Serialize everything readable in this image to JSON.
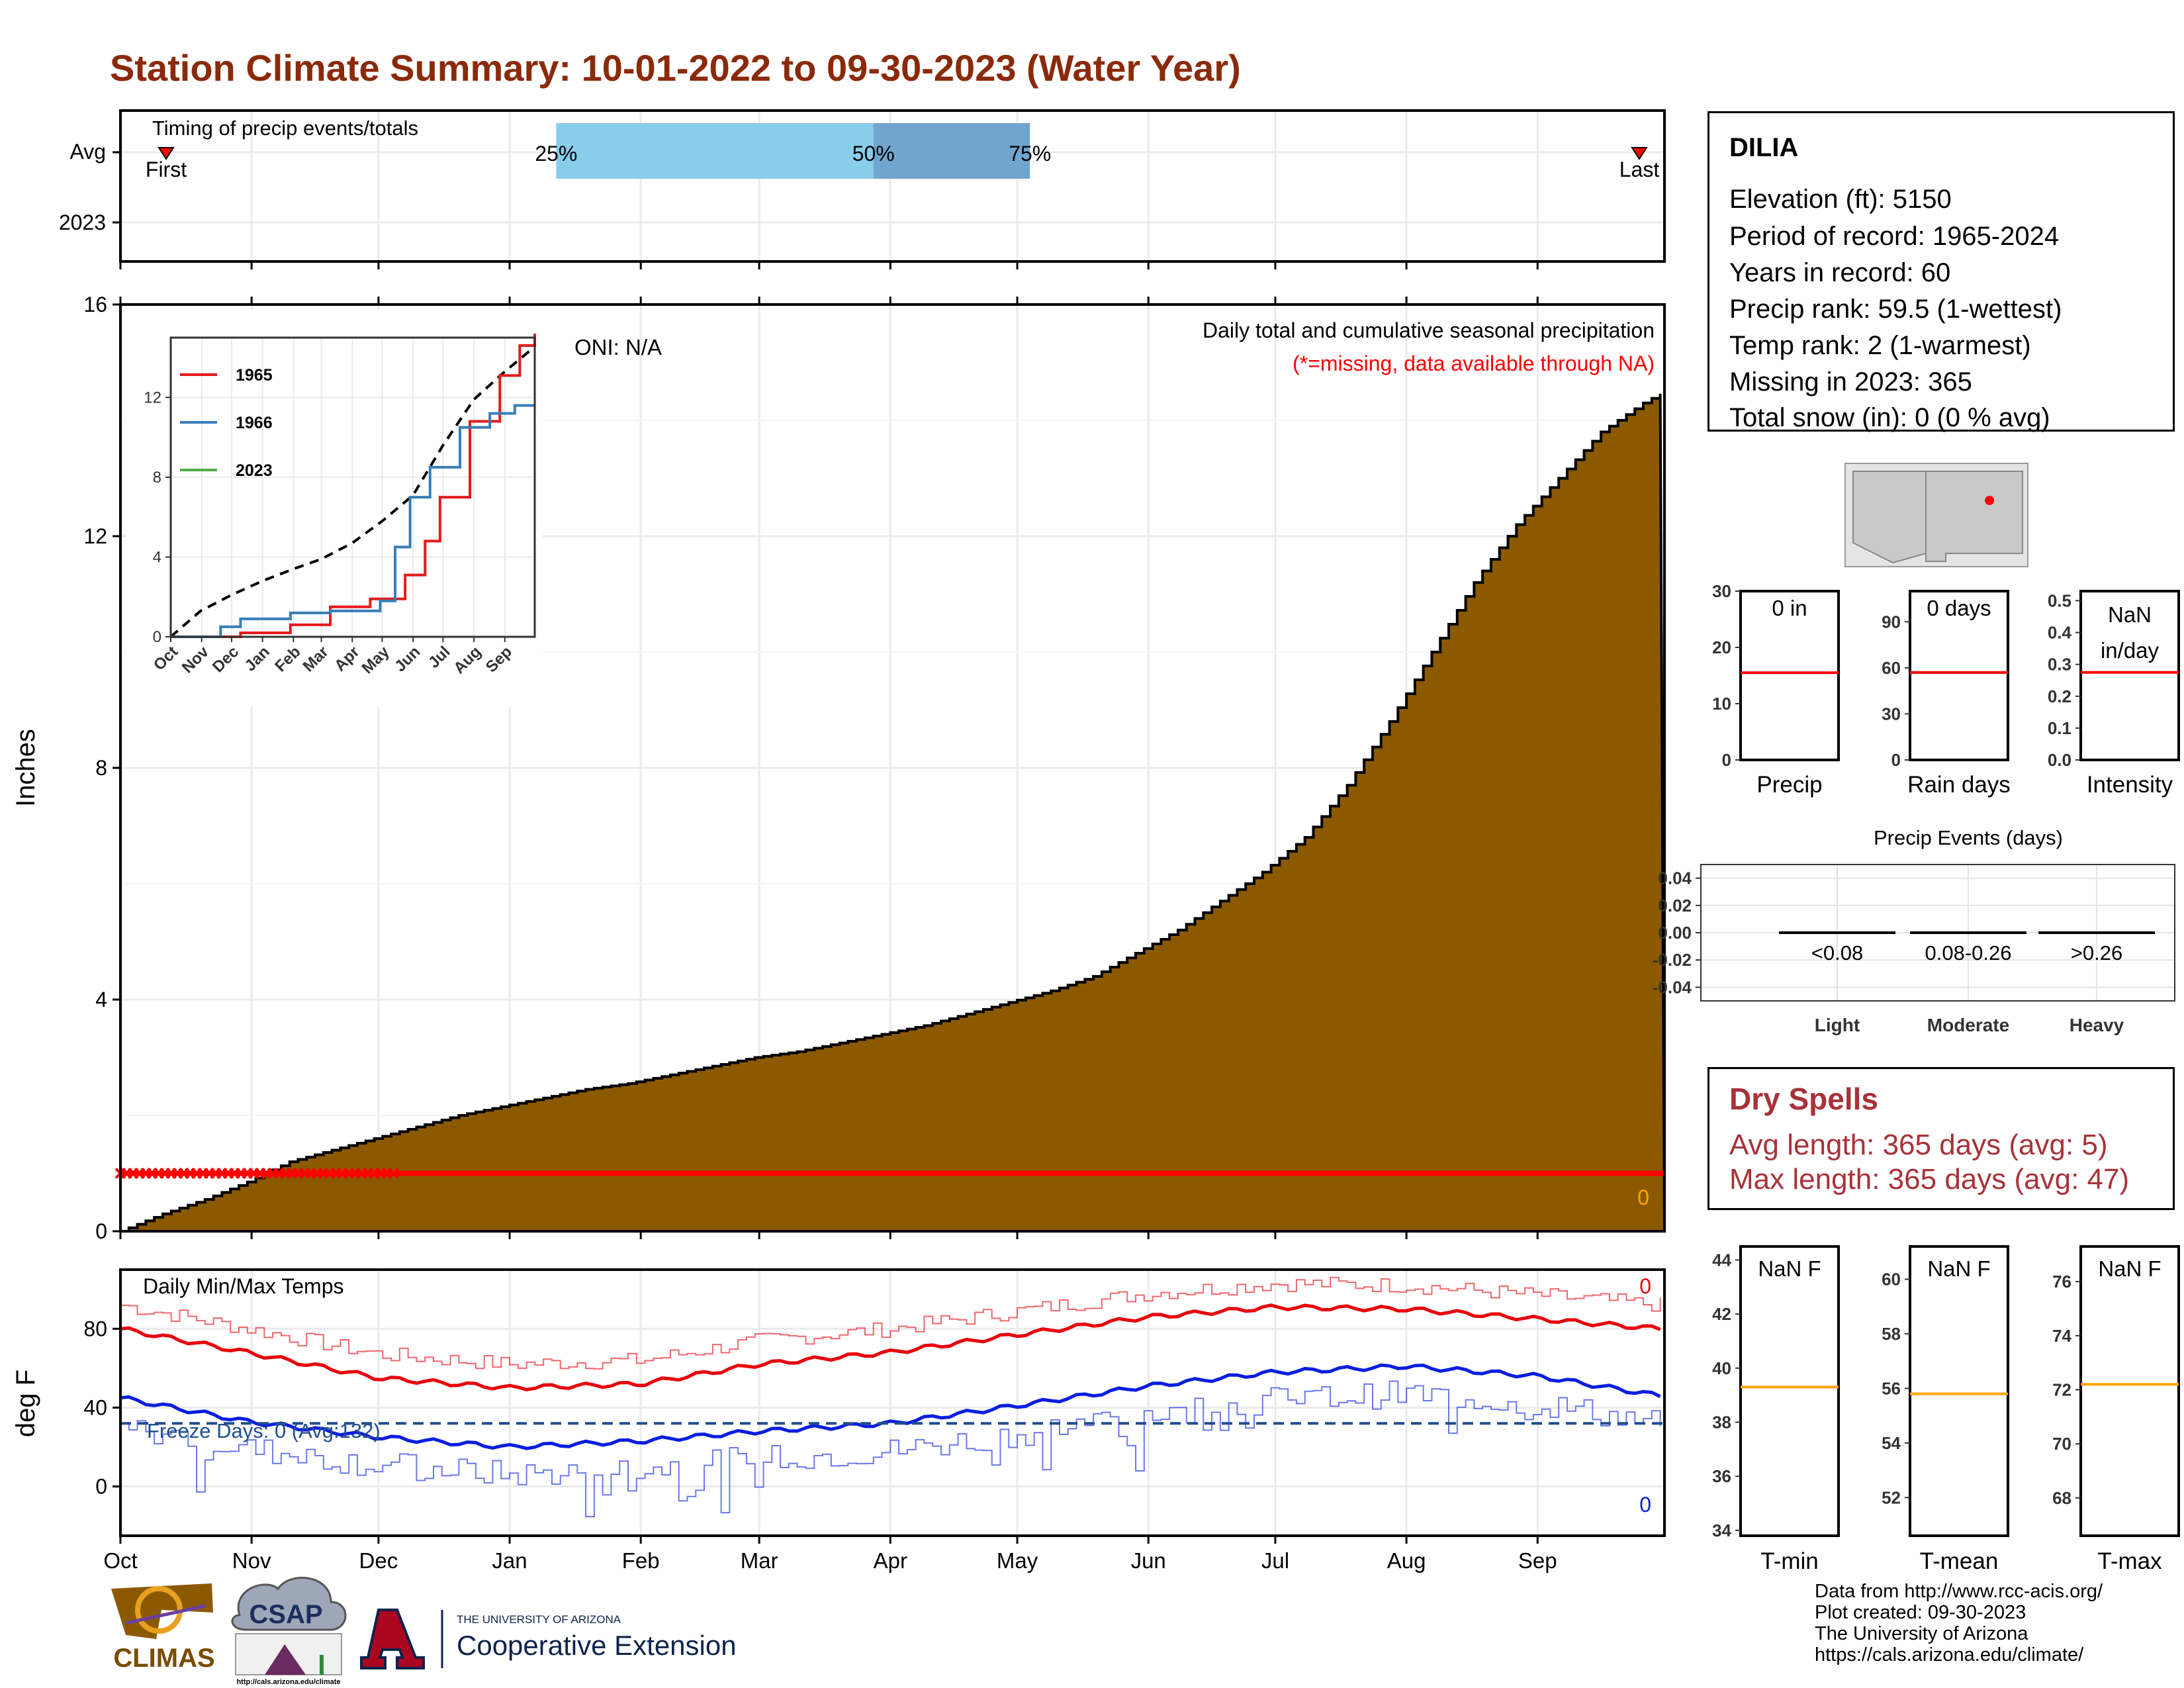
{
  "title": "Station Climate Summary: 10-01-2022 to 09-30-2023 (Water Year)",
  "colors": {
    "title": "#8B2A0B",
    "precip_fill": "#8B5A00",
    "missing": "#FF0000",
    "tmax": "#E8000B",
    "tmin": "#0A1EE0",
    "freeze": "#1F4E8C",
    "timing_light": "#87CEEB",
    "timing_dark": "#6FA5CF",
    "normal_line": "#FFA500",
    "dry_spell": "#A8323A"
  },
  "timing": {
    "label": "Timing of precip events/totals",
    "rows": [
      "Avg",
      "2023"
    ],
    "first_label": "First",
    "last_label": "Last",
    "markers": [
      "25%",
      "50%",
      "75%"
    ]
  },
  "station": {
    "name": "DILIA",
    "lines": [
      "Elevation (ft): 5150",
      "Period of record: 1965-2024",
      "Years in record: 60",
      "Precip rank: 59.5 (1-wettest)",
      "Temp rank: 2 (1-warmest)",
      "Missing in 2023: 365",
      "Total snow (in): 0 (0 % avg)"
    ]
  },
  "precip_panel": {
    "ylabel": "Inches",
    "note1": "Daily total and cumulative seasonal precipitation",
    "note2": "(*=missing, data available through NA)",
    "oni": "ONI: N/A",
    "zero_label": "0"
  },
  "temp_panel": {
    "ylabel": "deg F",
    "label": "Daily Min/Max Temps",
    "freeze_label": "Freeze Days: 0 (Avg:132)",
    "tmax_count": "0",
    "tmin_count": "0"
  },
  "months": [
    "Oct",
    "Nov",
    "Dec",
    "Jan",
    "Feb",
    "Mar",
    "Apr",
    "May",
    "Jun",
    "Jul",
    "Aug",
    "Sep"
  ],
  "inset": {
    "legend": [
      "1965",
      "1966",
      "2023"
    ],
    "legend_colors": [
      "#E41A1C",
      "#377EB8",
      "#4DAF4A"
    ],
    "months": [
      "Oct",
      "Nov",
      "Dec",
      "Jan",
      "Feb",
      "Mar",
      "Apr",
      "May",
      "Jun",
      "Jul",
      "Aug",
      "Sep"
    ]
  },
  "mini_bars": [
    {
      "label": "Precip",
      "value_text": "0 in",
      "ticks": [
        "0",
        "10",
        "20",
        "30"
      ]
    },
    {
      "label": "Rain days",
      "value_text": "0 days",
      "ticks": [
        "0",
        "30",
        "60",
        "90"
      ]
    },
    {
      "label": "Intensity",
      "value_text_1": "NaN",
      "value_text_2": "in/day",
      "ticks": [
        "0.0",
        "0.1",
        "0.2",
        "0.3",
        "0.4",
        "0.5"
      ]
    }
  ],
  "precip_events": {
    "title": "Precip Events (days)",
    "categories": [
      "Light",
      "Moderate",
      "Heavy"
    ],
    "ranges": [
      "<0.08",
      "0.08-0.26",
      ">0.26"
    ],
    "ticks": [
      "0.04",
      "0.02",
      "0.00",
      "-0.02",
      "-0.04"
    ]
  },
  "dry_spells": {
    "title": "Dry Spells",
    "avg": "Avg length: 365 days (avg: 5)",
    "max": "Max length: 365 days (avg: 47)"
  },
  "temp_bars": [
    {
      "label": "T-min",
      "value_text": "NaN F",
      "ticks": [
        "34",
        "36",
        "38",
        "40",
        "42",
        "44"
      ]
    },
    {
      "label": "T-mean",
      "value_text": "NaN F",
      "ticks": [
        "52",
        "54",
        "56",
        "58",
        "60"
      ]
    },
    {
      "label": "T-max",
      "value_text": "NaN F",
      "ticks": [
        "68",
        "70",
        "72",
        "74",
        "76"
      ]
    }
  ],
  "logos": {
    "climas": "CLIMAS",
    "csap": "CSAP",
    "csap_url": "http://cals.arizona.edu/climate",
    "ua_top": "THE UNIVERSITY OF ARIZONA",
    "ua_bottom": "Cooperative Extension"
  },
  "credits": [
    "Data from http://www.rcc-acis.org/",
    "Plot created: 09-30-2023",
    "The University of Arizona",
    "https://cals.arizona.edu/climate/"
  ],
  "chart_data": [
    {
      "type": "area",
      "title": "Daily total and cumulative seasonal precipitation",
      "ylabel": "Inches",
      "ylim": [
        0,
        16
      ],
      "yticks": [
        0,
        4,
        8,
        12,
        16
      ],
      "series": [
        {
          "name": "",
          "x": [
            0,
            10,
            20,
            30,
            40,
            50,
            60,
            70,
            80,
            90,
            100,
            110,
            120,
            130,
            140,
            150,
            160,
            170,
            180,
            190,
            200,
            210,
            220,
            230,
            240,
            250,
            260,
            270,
            280,
            290,
            300,
            310,
            320,
            330,
            340,
            350,
            360,
            365
          ],
          "values": [
            0,
            0.3,
            0.55,
            0.85,
            1.2,
            1.4,
            1.6,
            1.8,
            2.0,
            2.15,
            2.3,
            2.45,
            2.55,
            2.7,
            2.85,
            3.0,
            3.1,
            3.25,
            3.4,
            3.55,
            3.75,
            3.95,
            4.15,
            4.4,
            4.8,
            5.2,
            5.7,
            6.2,
            6.8,
            7.7,
            8.8,
            10.0,
            11.2,
            12.2,
            13.0,
            13.8,
            14.3,
            14.5
          ]
        }
      ],
      "missing_value": 1.0
    },
    {
      "type": "line",
      "title": "Daily Min/Max Temps",
      "ylabel": "deg F",
      "ylim": [
        -25,
        110
      ],
      "yticks": [
        0,
        40,
        80
      ],
      "freeze_line": 32,
      "series": [
        {
          "name": "",
          "x": [
            0,
            30,
            61,
            92,
            123,
            151,
            182,
            212,
            243,
            273,
            304,
            335,
            364
          ],
          "values": [
            80,
            68,
            55,
            50,
            52,
            62,
            68,
            77,
            86,
            91,
            90,
            85,
            80
          ]
        },
        {
          "name": "",
          "x": [
            0,
            30,
            61,
            92,
            123,
            151,
            182,
            212,
            243,
            273,
            304,
            335,
            364
          ],
          "values": [
            45,
            33,
            25,
            20,
            23,
            28,
            32,
            41,
            51,
            58,
            61,
            56,
            46
          ]
        }
      ]
    },
    {
      "type": "line",
      "title": "",
      "ylim": [
        0,
        15
      ],
      "yticks": [
        0,
        4,
        8,
        12
      ],
      "series": [
        {
          "name": "",
          "x": [
            0,
            30,
            61,
            92,
            123,
            151,
            182,
            212,
            243,
            273,
            304,
            335,
            364
          ],
          "values": [
            0,
            1.3,
            2.1,
            2.8,
            3.4,
            3.9,
            4.7,
            5.8,
            7.1,
            9.6,
            11.9,
            13.3,
            14.5
          ]
        },
        {
          "name": "1965",
          "x": [
            0,
            60,
            70,
            120,
            160,
            200,
            235,
            255,
            270,
            300,
            330,
            350,
            365
          ],
          "values": [
            0,
            0,
            0.2,
            0.6,
            1.5,
            1.9,
            3.1,
            4.8,
            7.0,
            10.8,
            13.1,
            14.6,
            15.2
          ]
        },
        {
          "name": "1966",
          "x": [
            0,
            40,
            50,
            70,
            120,
            160,
            210,
            225,
            240,
            260,
            290,
            320,
            345,
            365
          ],
          "values": [
            0,
            0,
            0.5,
            0.9,
            1.2,
            1.3,
            1.8,
            4.5,
            7.0,
            8.5,
            10.5,
            11.2,
            11.6,
            11.6
          ]
        }
      ]
    }
  ]
}
